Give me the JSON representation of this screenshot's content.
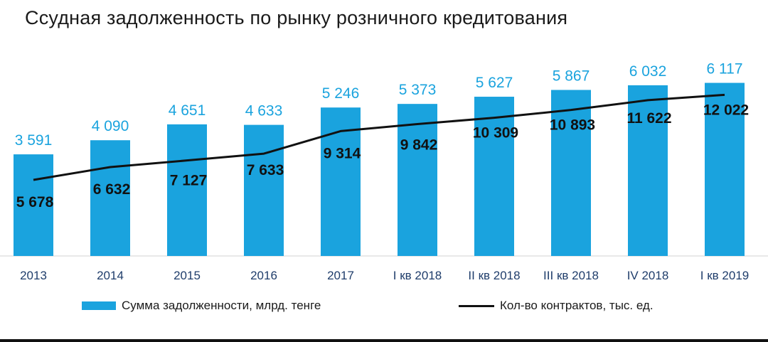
{
  "title": "Ссудная задолженность по рынку розничного кредитования",
  "colors": {
    "bar": "#1aa3de",
    "line": "#111111",
    "bar_label": "#1aa3de",
    "axis_label": "#1f3d6b"
  },
  "chart_data": {
    "type": "bar",
    "title": "Ссудная задолженность по рынку розничного кредитования",
    "categories": [
      "2013",
      "2014",
      "2015",
      "2016",
      "2017",
      "I кв 2018",
      "II кв 2018",
      "III кв 2018",
      "IV 2018",
      "I кв 2019"
    ],
    "series": [
      {
        "name": "Сумма задолженности, млрд. тенге",
        "type": "bar",
        "values": [
          3591,
          4090,
          4651,
          4633,
          5246,
          5373,
          5627,
          5867,
          6032,
          6117
        ],
        "labels": [
          "3 591",
          "4 090",
          "4 651",
          "4 633",
          "5 246",
          "5 373",
          "5 627",
          "5 867",
          "6 032",
          "6 117"
        ]
      },
      {
        "name": "Кол-во контрактов, тыс. ед.",
        "type": "line",
        "values": [
          5678,
          6632,
          7127,
          7633,
          9314,
          9842,
          10309,
          10893,
          11622,
          12022
        ],
        "labels": [
          "5 678",
          "6 632",
          "7 127",
          "7 633",
          "9 314",
          "9 842",
          "10 309",
          "10 893",
          "11 622",
          "12 022"
        ]
      }
    ],
    "bar_ylim": [
      0,
      6800
    ],
    "line_ylim": [
      0,
      16500
    ],
    "legend_position": "bottom",
    "grid": false
  },
  "legend": {
    "bar": "Сумма задолженности, млрд. тенге",
    "line": "Кол-во контрактов, тыс. ед."
  }
}
